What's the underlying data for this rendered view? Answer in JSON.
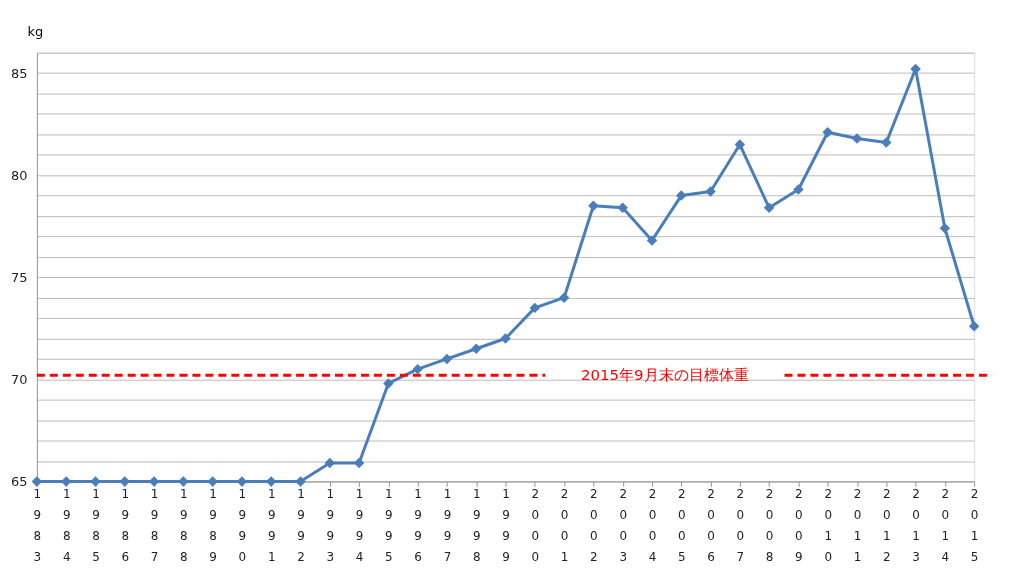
{
  "chart_data": {
    "type": "line",
    "ylabel": "kg",
    "categories": [
      "1983",
      "1984",
      "1985",
      "1986",
      "1987",
      "1988",
      "1989",
      "1990",
      "1991",
      "1992",
      "1993",
      "1994",
      "1995",
      "1996",
      "1997",
      "1998",
      "1999",
      "2000",
      "2001",
      "2002",
      "2003",
      "2004",
      "2005",
      "2006",
      "2007",
      "2008",
      "2009",
      "2010",
      "2011",
      "2012",
      "2013",
      "2014",
      "2015"
    ],
    "series": [
      {
        "color": "#4a7ebb",
        "values": [
          65,
          65,
          65,
          65,
          65,
          65,
          65,
          65,
          65,
          65,
          65.9,
          65.9,
          69.8,
          70.5,
          71,
          71.5,
          72,
          73.5,
          74,
          78.5,
          78.4,
          76.8,
          79,
          79.2,
          81.5,
          78.4,
          79.3,
          82.1,
          81.8,
          81.6,
          85.2,
          77.4,
          72.6
        ]
      }
    ],
    "ylim": [
      65,
      86
    ],
    "yticks": [
      65,
      {
        "value": 66,
        "label": null
      },
      {
        "value": 67,
        "label": null
      },
      {
        "value": 68,
        "label": null
      },
      {
        "value": 69,
        "label": null
      },
      70,
      {
        "value": 71,
        "label": null
      },
      {
        "value": 72,
        "label": null
      },
      {
        "value": 73,
        "label": null
      },
      {
        "value": 74,
        "label": null
      },
      75,
      {
        "value": 76,
        "label": null
      },
      {
        "value": 77,
        "label": null
      },
      {
        "value": 78,
        "label": null
      },
      {
        "value": 79,
        "label": null
      },
      80,
      {
        "value": 81,
        "label": null
      },
      {
        "value": 82,
        "label": null
      },
      {
        "value": 83,
        "label": null
      },
      {
        "value": 84,
        "label": null
      },
      85,
      {
        "value": 86,
        "label": null
      }
    ],
    "grid": "y",
    "marker": "diamond",
    "line_style": "solid",
    "ref_lines": [
      {
        "axis": "y",
        "value": 70.2,
        "label": "2015年9月末の目標体重",
        "color": "#ff0000",
        "line_style": "dashed"
      }
    ]
  }
}
